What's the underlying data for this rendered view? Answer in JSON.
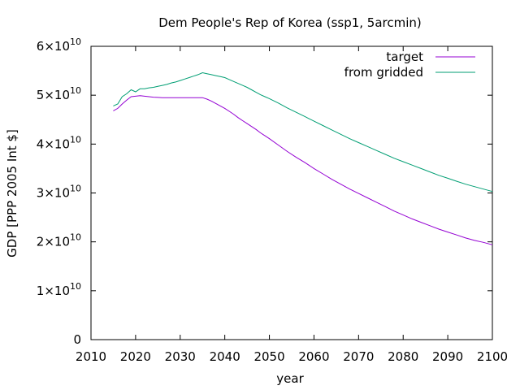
{
  "chart_data": {
    "type": "line",
    "title": "Dem People's Rep of Korea (ssp1, 5arcmin)",
    "xlabel": "year",
    "ylabel": "GDP [PPP 2005 Int $]",
    "xlim": [
      2010,
      2100
    ],
    "ylim": [
      0,
      60000000000
    ],
    "x_ticks": [
      2010,
      2020,
      2030,
      2040,
      2050,
      2060,
      2070,
      2080,
      2090,
      2100
    ],
    "y_ticks": [
      {
        "value": 0,
        "mantissa": "0",
        "exponent": ""
      },
      {
        "value": 10000000000,
        "mantissa": "1×10",
        "exponent": "10"
      },
      {
        "value": 20000000000,
        "mantissa": "2×10",
        "exponent": "10"
      },
      {
        "value": 30000000000,
        "mantissa": "3×10",
        "exponent": "10"
      },
      {
        "value": 40000000000,
        "mantissa": "4×10",
        "exponent": "10"
      },
      {
        "value": 50000000000,
        "mantissa": "5×10",
        "exponent": "10"
      },
      {
        "value": 60000000000,
        "mantissa": "6×10",
        "exponent": "10"
      }
    ],
    "grid": false,
    "legend_position": "top-right",
    "series": [
      {
        "name": "target",
        "color": "#9400d3",
        "x": [
          2015,
          2016,
          2017,
          2018,
          2019,
          2020,
          2021,
          2022,
          2023,
          2024,
          2025,
          2026,
          2027,
          2028,
          2029,
          2030,
          2031,
          2032,
          2033,
          2034,
          2035,
          2036,
          2037,
          2038,
          2039,
          2040,
          2041,
          2042,
          2043,
          2044,
          2045,
          2046,
          2047,
          2048,
          2049,
          2050,
          2052,
          2054,
          2056,
          2058,
          2060,
          2062,
          2064,
          2066,
          2068,
          2070,
          2072,
          2074,
          2076,
          2078,
          2080,
          2082,
          2084,
          2086,
          2088,
          2090,
          2092,
          2094,
          2096,
          2098,
          2100
        ],
        "y": [
          46800000000,
          47300000000,
          48200000000,
          49000000000,
          49700000000,
          49800000000,
          49900000000,
          49800000000,
          49700000000,
          49600000000,
          49550000000,
          49500000000,
          49500000000,
          49500000000,
          49500000000,
          49500000000,
          49500000000,
          49500000000,
          49500000000,
          49500000000,
          49500000000,
          49200000000,
          48800000000,
          48300000000,
          47800000000,
          47300000000,
          46700000000,
          46100000000,
          45400000000,
          44800000000,
          44200000000,
          43600000000,
          43000000000,
          42300000000,
          41700000000,
          41100000000,
          39800000000,
          38500000000,
          37300000000,
          36200000000,
          35000000000,
          33900000000,
          32800000000,
          31800000000,
          30800000000,
          29900000000,
          29000000000,
          28100000000,
          27200000000,
          26300000000,
          25500000000,
          24700000000,
          24000000000,
          23300000000,
          22600000000,
          22000000000,
          21400000000,
          20800000000,
          20300000000,
          19900000000,
          19400000000
        ]
      },
      {
        "name": "from gridded",
        "color": "#009e73",
        "x": [
          2015,
          2016,
          2017,
          2018,
          2019,
          2020,
          2021,
          2022,
          2023,
          2024,
          2025,
          2026,
          2027,
          2028,
          2029,
          2030,
          2031,
          2032,
          2033,
          2034,
          2035,
          2036,
          2037,
          2038,
          2039,
          2040,
          2041,
          2042,
          2043,
          2044,
          2045,
          2046,
          2047,
          2048,
          2049,
          2050,
          2052,
          2054,
          2056,
          2058,
          2060,
          2062,
          2064,
          2066,
          2068,
          2070,
          2072,
          2074,
          2076,
          2078,
          2080,
          2082,
          2084,
          2086,
          2088,
          2090,
          2092,
          2094,
          2096,
          2098,
          2100
        ],
        "y": [
          47800000000,
          48200000000,
          49700000000,
          50300000000,
          51100000000,
          50700000000,
          51300000000,
          51300000000,
          51500000000,
          51600000000,
          51800000000,
          52000000000,
          52200000000,
          52500000000,
          52700000000,
          53000000000,
          53300000000,
          53600000000,
          53900000000,
          54200000000,
          54600000000,
          54400000000,
          54200000000,
          54000000000,
          53800000000,
          53600000000,
          53200000000,
          52800000000,
          52400000000,
          52000000000,
          51600000000,
          51100000000,
          50600000000,
          50100000000,
          49700000000,
          49300000000,
          48400000000,
          47400000000,
          46500000000,
          45600000000,
          44700000000,
          43800000000,
          42900000000,
          42000000000,
          41100000000,
          40300000000,
          39500000000,
          38700000000,
          37900000000,
          37100000000,
          36400000000,
          35700000000,
          35000000000,
          34300000000,
          33600000000,
          33000000000,
          32400000000,
          31800000000,
          31300000000,
          30800000000,
          30300000000
        ]
      }
    ]
  }
}
